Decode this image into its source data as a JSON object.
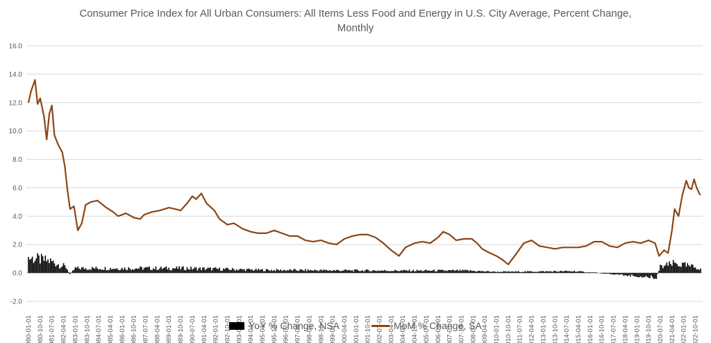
{
  "chart_data": {
    "type": "bar+line",
    "title_lines": [
      "Consumer Price Index for All Urban Consumers: All Items Less Food and Energy in U.S. City Average, Percent Change,",
      "Monthly"
    ],
    "ylim": [
      -2.0,
      16.0
    ],
    "y_ticks": [
      "16.0",
      "14.0",
      "12.0",
      "10.0",
      "8.0",
      "6.0",
      "4.0",
      "2.0",
      "0.0",
      "-2.0"
    ],
    "grid": "horizontal",
    "legend_position": "bottom",
    "x_tick_labels": [
      "1980-01-01",
      "1980-10-01",
      "1981-07-01",
      "1982-04-01",
      "1983-01-01",
      "1983-10-01",
      "1984-07-01",
      "1985-04-01",
      "1986-01-01",
      "1986-10-01",
      "1987-07-01",
      "1988-04-01",
      "1989-01-01",
      "1989-10-01",
      "1990-07-01",
      "1991-04-01",
      "1992-01-01",
      "1992-10-01",
      "1993-07-01",
      "1994-04-01",
      "1995-01-01",
      "1995-10-01",
      "1996-07-01",
      "1997-04-01",
      "1998-01-01",
      "1998-10-01",
      "1999-07-01",
      "2000-04-01",
      "2001-01-01",
      "2001-10-01",
      "2002-07-01",
      "2003-04-01",
      "2004-01-01",
      "2004-10-01",
      "2005-07-01",
      "2006-04-01",
      "2007-01-01",
      "2007-10-01",
      "2008-07-01",
      "2009-04-01",
      "2010-01-01",
      "2010-10-01",
      "2011-07-01",
      "2012-04-01",
      "2013-01-01",
      "2013-10-01",
      "2014-07-01",
      "2015-04-01",
      "2016-01-01",
      "2016-10-01",
      "2017-07-01",
      "2018-04-01",
      "2019-01-01",
      "2019-10-01",
      "2020-07-01",
      "2021-04-01",
      "2022-01-01",
      "2022-10-01"
    ],
    "series": [
      {
        "name": "YoY % Change, NSA",
        "kind": "bar",
        "color": "#000000",
        "x_start": "1980-01",
        "x_end": "2023-02",
        "approximate_values_by_date": [
          {
            "date": "1980-01",
            "value": 1.3
          },
          {
            "date": "1981-06",
            "value": 1.0
          },
          {
            "date": "1982-06",
            "value": 0.5
          },
          {
            "date": "1982-09",
            "value": -0.1
          },
          {
            "date": "1983-01",
            "value": 0.4
          },
          {
            "date": "1990-01",
            "value": 0.4
          },
          {
            "date": "1995-01",
            "value": 0.25
          },
          {
            "date": "2003-01",
            "value": 0.2
          },
          {
            "date": "2008-01",
            "value": 0.2
          },
          {
            "date": "2010-01",
            "value": 0.1
          },
          {
            "date": "2015-01",
            "value": 0.15
          },
          {
            "date": "2020-04",
            "value": -0.4
          },
          {
            "date": "2020-07",
            "value": 0.5
          },
          {
            "date": "2021-06",
            "value": 0.8
          },
          {
            "date": "2023-02",
            "value": 0.4
          }
        ]
      },
      {
        "name": "MoM % Change, SA",
        "kind": "line",
        "color": "#8b4513",
        "points": [
          {
            "date": "1980-01",
            "value": 12.0
          },
          {
            "date": "1980-03",
            "value": 12.8
          },
          {
            "date": "1980-06",
            "value": 13.6
          },
          {
            "date": "1980-08",
            "value": 11.9
          },
          {
            "date": "1980-10",
            "value": 12.3
          },
          {
            "date": "1981-01",
            "value": 11.0
          },
          {
            "date": "1981-03",
            "value": 9.4
          },
          {
            "date": "1981-05",
            "value": 11.2
          },
          {
            "date": "1981-07",
            "value": 11.8
          },
          {
            "date": "1981-09",
            "value": 9.7
          },
          {
            "date": "1981-12",
            "value": 9.0
          },
          {
            "date": "1982-03",
            "value": 8.5
          },
          {
            "date": "1982-05",
            "value": 7.5
          },
          {
            "date": "1982-07",
            "value": 5.8
          },
          {
            "date": "1982-09",
            "value": 4.5
          },
          {
            "date": "1982-12",
            "value": 4.7
          },
          {
            "date": "1983-03",
            "value": 3.0
          },
          {
            "date": "1983-06",
            "value": 3.5
          },
          {
            "date": "1983-09",
            "value": 4.8
          },
          {
            "date": "1984-01",
            "value": 5.0
          },
          {
            "date": "1984-06",
            "value": 5.1
          },
          {
            "date": "1985-01",
            "value": 4.6
          },
          {
            "date": "1985-06",
            "value": 4.3
          },
          {
            "date": "1985-10",
            "value": 4.0
          },
          {
            "date": "1986-04",
            "value": 4.2
          },
          {
            "date": "1986-10",
            "value": 3.9
          },
          {
            "date": "1987-03",
            "value": 3.8
          },
          {
            "date": "1987-06",
            "value": 4.1
          },
          {
            "date": "1987-12",
            "value": 4.3
          },
          {
            "date": "1988-06",
            "value": 4.4
          },
          {
            "date": "1989-01",
            "value": 4.6
          },
          {
            "date": "1989-06",
            "value": 4.5
          },
          {
            "date": "1989-10",
            "value": 4.4
          },
          {
            "date": "1990-03",
            "value": 4.9
          },
          {
            "date": "1990-07",
            "value": 5.4
          },
          {
            "date": "1990-10",
            "value": 5.2
          },
          {
            "date": "1991-02",
            "value": 5.6
          },
          {
            "date": "1991-06",
            "value": 4.9
          },
          {
            "date": "1991-12",
            "value": 4.4
          },
          {
            "date": "1992-04",
            "value": 3.8
          },
          {
            "date": "1992-10",
            "value": 3.4
          },
          {
            "date": "1993-03",
            "value": 3.5
          },
          {
            "date": "1993-10",
            "value": 3.1
          },
          {
            "date": "1994-04",
            "value": 2.9
          },
          {
            "date": "1994-10",
            "value": 2.8
          },
          {
            "date": "1995-04",
            "value": 2.8
          },
          {
            "date": "1995-10",
            "value": 3.0
          },
          {
            "date": "1996-04",
            "value": 2.8
          },
          {
            "date": "1996-10",
            "value": 2.6
          },
          {
            "date": "1997-04",
            "value": 2.6
          },
          {
            "date": "1997-10",
            "value": 2.3
          },
          {
            "date": "1998-04",
            "value": 2.2
          },
          {
            "date": "1998-10",
            "value": 2.3
          },
          {
            "date": "1999-04",
            "value": 2.1
          },
          {
            "date": "1999-10",
            "value": 2.0
          },
          {
            "date": "2000-04",
            "value": 2.4
          },
          {
            "date": "2000-10",
            "value": 2.6
          },
          {
            "date": "2001-04",
            "value": 2.7
          },
          {
            "date": "2001-10",
            "value": 2.7
          },
          {
            "date": "2002-04",
            "value": 2.5
          },
          {
            "date": "2002-10",
            "value": 2.1
          },
          {
            "date": "2003-04",
            "value": 1.6
          },
          {
            "date": "2003-10",
            "value": 1.2
          },
          {
            "date": "2004-03",
            "value": 1.8
          },
          {
            "date": "2004-10",
            "value": 2.1
          },
          {
            "date": "2005-04",
            "value": 2.2
          },
          {
            "date": "2005-10",
            "value": 2.1
          },
          {
            "date": "2006-04",
            "value": 2.5
          },
          {
            "date": "2006-08",
            "value": 2.9
          },
          {
            "date": "2007-01",
            "value": 2.7
          },
          {
            "date": "2007-06",
            "value": 2.3
          },
          {
            "date": "2007-12",
            "value": 2.4
          },
          {
            "date": "2008-06",
            "value": 2.4
          },
          {
            "date": "2008-10",
            "value": 2.1
          },
          {
            "date": "2009-02",
            "value": 1.7
          },
          {
            "date": "2009-08",
            "value": 1.4
          },
          {
            "date": "2010-01",
            "value": 1.2
          },
          {
            "date": "2010-06",
            "value": 0.9
          },
          {
            "date": "2010-10",
            "value": 0.6
          },
          {
            "date": "2011-03",
            "value": 1.2
          },
          {
            "date": "2011-10",
            "value": 2.1
          },
          {
            "date": "2012-04",
            "value": 2.3
          },
          {
            "date": "2012-10",
            "value": 1.9
          },
          {
            "date": "2013-04",
            "value": 1.8
          },
          {
            "date": "2013-10",
            "value": 1.7
          },
          {
            "date": "2014-04",
            "value": 1.8
          },
          {
            "date": "2014-10",
            "value": 1.8
          },
          {
            "date": "2015-04",
            "value": 1.8
          },
          {
            "date": "2015-10",
            "value": 1.9
          },
          {
            "date": "2016-04",
            "value": 2.2
          },
          {
            "date": "2016-10",
            "value": 2.2
          },
          {
            "date": "2017-04",
            "value": 1.9
          },
          {
            "date": "2017-10",
            "value": 1.8
          },
          {
            "date": "2018-04",
            "value": 2.1
          },
          {
            "date": "2018-10",
            "value": 2.2
          },
          {
            "date": "2019-04",
            "value": 2.1
          },
          {
            "date": "2019-10",
            "value": 2.3
          },
          {
            "date": "2020-03",
            "value": 2.1
          },
          {
            "date": "2020-06",
            "value": 1.2
          },
          {
            "date": "2020-10",
            "value": 1.6
          },
          {
            "date": "2021-01",
            "value": 1.4
          },
          {
            "date": "2021-04",
            "value": 3.0
          },
          {
            "date": "2021-06",
            "value": 4.5
          },
          {
            "date": "2021-09",
            "value": 4.0
          },
          {
            "date": "2021-12",
            "value": 5.5
          },
          {
            "date": "2022-03",
            "value": 6.5
          },
          {
            "date": "2022-05",
            "value": 6.0
          },
          {
            "date": "2022-07",
            "value": 5.9
          },
          {
            "date": "2022-09",
            "value": 6.6
          },
          {
            "date": "2022-11",
            "value": 6.0
          },
          {
            "date": "2023-01",
            "value": 5.6
          },
          {
            "date": "2023-02",
            "value": 5.5
          }
        ]
      }
    ]
  }
}
